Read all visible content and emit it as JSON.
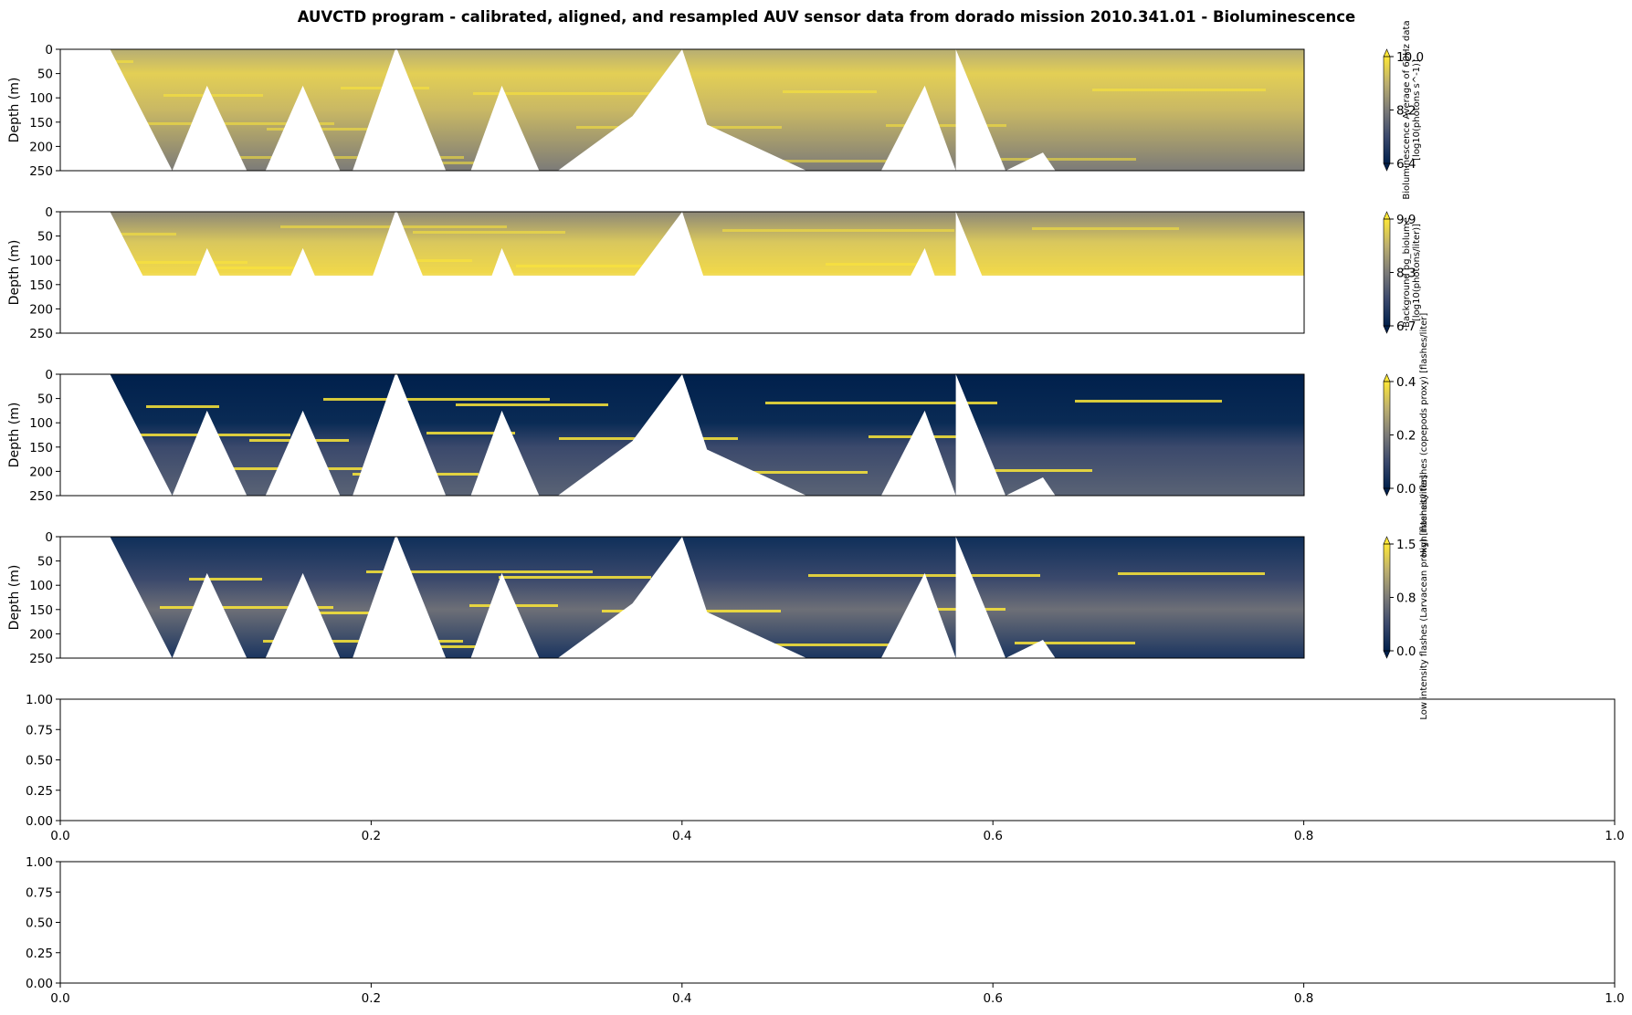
{
  "figure": {
    "title": "AUVCTD program - calibrated, aligned, and resampled AUV sensor data from dorado mission 2010.341.01 - Bioluminescence"
  },
  "colors": {
    "low": "#00204c",
    "mid": "#7c7b78",
    "high": "#fde737",
    "axis": "#000000"
  },
  "chart_data": [
    {
      "type": "heatmap",
      "title": "",
      "ylabel": "Depth (m)",
      "ylim": [
        250,
        0
      ],
      "yticks": [
        "0",
        "50",
        "100",
        "150",
        "200",
        "250"
      ],
      "colorbar": {
        "label_lines": [
          "Bioluminescence Average of 60Hz data",
          "[log10(photons s^-1)]"
        ],
        "ticks": [
          "10.0",
          "8.2",
          "6.4"
        ],
        "vmin": 6.4,
        "vmax": 10.0,
        "colormap": "cividis",
        "extend": "both"
      }
    },
    {
      "type": "heatmap",
      "title": "",
      "ylabel": "Depth (m)",
      "ylim": [
        250,
        0
      ],
      "yticks": [
        "0",
        "50",
        "100",
        "150",
        "200",
        "250"
      ],
      "colorbar": {
        "label_lines": [
          "Background bg_biolume",
          "[log10(photons/liter)]"
        ],
        "ticks": [
          "9.9",
          "8.3",
          "6.7"
        ],
        "vmin": 6.7,
        "vmax": 9.9,
        "colormap": "cividis",
        "extend": "both"
      }
    },
    {
      "type": "heatmap",
      "title": "",
      "ylabel": "Depth (m)",
      "ylim": [
        250,
        0
      ],
      "yticks": [
        "0",
        "50",
        "100",
        "150",
        "200",
        "250"
      ],
      "colorbar": {
        "label_lines": [
          "High intensity flashes (copepods proxy) [flashes/liter]"
        ],
        "ticks": [
          "0.4",
          "0.2",
          "0.0"
        ],
        "vmin": 0.0,
        "vmax": 0.4,
        "colormap": "cividis",
        "extend": "both"
      }
    },
    {
      "type": "heatmap",
      "title": "",
      "ylabel": "Depth (m)",
      "ylim": [
        250,
        0
      ],
      "yticks": [
        "0",
        "50",
        "100",
        "150",
        "200",
        "250"
      ],
      "colorbar": {
        "label_lines": [
          "Low intensity flashes (Larvacean proxy) [flashes/liter]"
        ],
        "ticks": [
          "1.5",
          "0.8",
          "0.0"
        ],
        "vmin": 0.0,
        "vmax": 1.5,
        "colormap": "cividis",
        "extend": "both"
      }
    },
    {
      "type": "line",
      "title": "",
      "xlim": [
        0.0,
        1.0
      ],
      "ylim": [
        0.0,
        1.0
      ],
      "xticks": [
        "0.0",
        "0.2",
        "0.4",
        "0.6",
        "0.8",
        "1.0"
      ],
      "yticks": [
        "0.00",
        "0.25",
        "0.50",
        "0.75",
        "1.00"
      ],
      "series": []
    },
    {
      "type": "line",
      "title": "",
      "xlim": [
        0.0,
        1.0
      ],
      "ylim": [
        0.0,
        1.0
      ],
      "xticks": [
        "0.0",
        "0.2",
        "0.4",
        "0.6",
        "0.8",
        "1.0"
      ],
      "yticks": [
        "0.00",
        "0.25",
        "0.50",
        "0.75",
        "1.00"
      ],
      "series": []
    }
  ]
}
